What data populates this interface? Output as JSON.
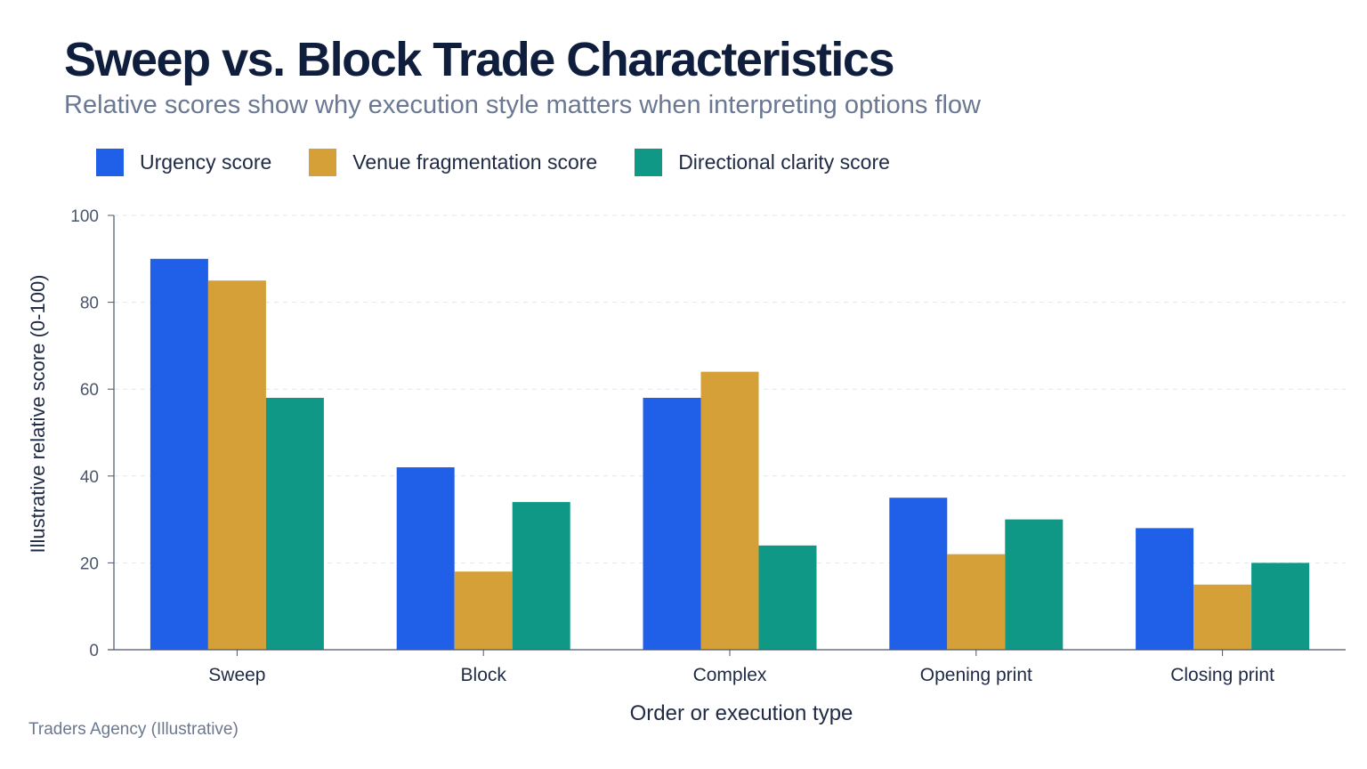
{
  "header": {
    "title": "Sweep vs. Block Trade Characteristics",
    "subtitle": "Relative scores show why execution style matters when interpreting options flow"
  },
  "footer": {
    "source": "Traders Agency (Illustrative)"
  },
  "chart_data": {
    "type": "bar",
    "title": "Sweep vs. Block Trade Characteristics",
    "subtitle": "Relative scores show why execution style matters when interpreting options flow",
    "xlabel": "Order or execution type",
    "ylabel": "Illustrative relative score (0-100)",
    "ylim": [
      0,
      100
    ],
    "yticks": [
      0,
      20,
      40,
      60,
      80,
      100
    ],
    "grid": true,
    "legend_position": "top-left",
    "categories": [
      "Sweep",
      "Block",
      "Complex",
      "Opening print",
      "Closing print"
    ],
    "series": [
      {
        "name": "Urgency score",
        "color": "#2060e8",
        "values": [
          90,
          42,
          58,
          35,
          28
        ]
      },
      {
        "name": "Venue fragmentation score",
        "color": "#d4a037",
        "values": [
          85,
          18,
          64,
          22,
          15
        ]
      },
      {
        "name": "Directional clarity score",
        "color": "#109887",
        "values": [
          58,
          34,
          24,
          30,
          20
        ]
      }
    ]
  }
}
